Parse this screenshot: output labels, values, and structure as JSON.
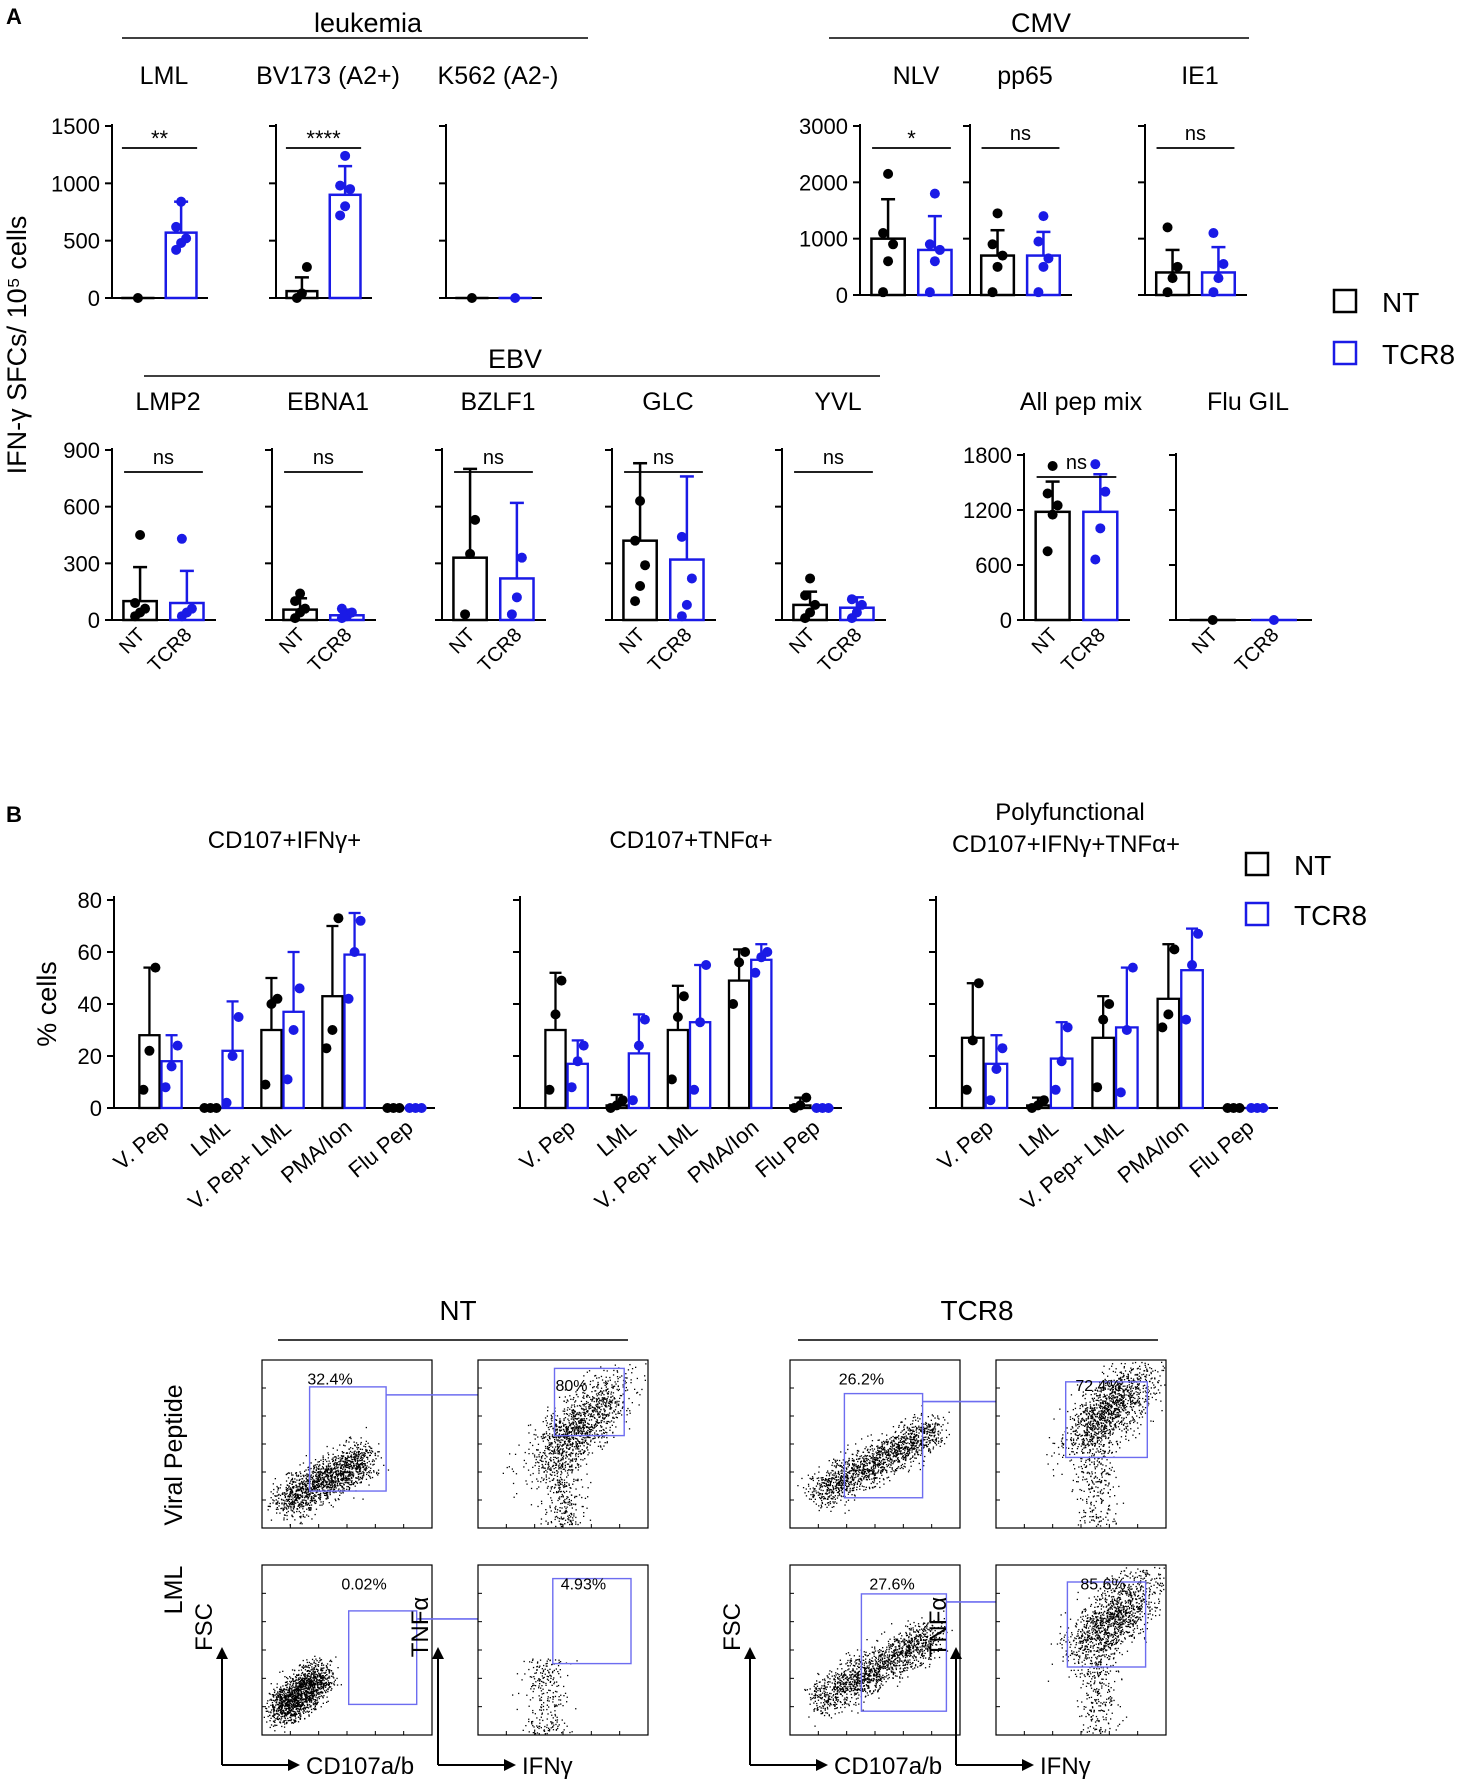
{
  "colors": {
    "nt": "#000000",
    "tcr8": "#1a1ae6",
    "gate": "#6d6df0"
  },
  "figure": {
    "panel_a_label": "A",
    "panel_b_label": "B",
    "legend": {
      "nt": "NT",
      "tcr8": "TCR8"
    },
    "group_a": {
      "x_labels": [
        "NT",
        "TCR8"
      ]
    },
    "group_b": {
      "x_labels": [
        "V. Pep",
        "LML",
        "V. Pep+ LML",
        "PMA/Ion",
        "Flu Pep"
      ]
    },
    "ylabel_a": "IFN-γ SFCs/ 10⁵ cells",
    "ylabel_b": "% cells"
  },
  "chart_data": [
    {
      "type": "bar",
      "group": "leukemia",
      "title": "LML",
      "ylim": [
        0,
        1500
      ],
      "yticks": [
        "0",
        "500",
        "1000",
        "1500"
      ],
      "categories": [
        "NT",
        "TCR8"
      ],
      "values": [
        0,
        570
      ],
      "errors": [
        0,
        270
      ],
      "points": [
        [
          0
        ],
        [
          420,
          480,
          520,
          620,
          840
        ]
      ],
      "sig": "**"
    },
    {
      "type": "bar",
      "group": "leukemia",
      "title": "BV173 (A2+)",
      "ylim": [
        0,
        1500
      ],
      "yticks": [],
      "categories": [
        "NT",
        "TCR8"
      ],
      "values": [
        60,
        900
      ],
      "errors": [
        120,
        250
      ],
      "points": [
        [
          0,
          40,
          270
        ],
        [
          720,
          800,
          950,
          980,
          1240
        ]
      ],
      "sig": "****"
    },
    {
      "type": "bar",
      "group": "leukemia",
      "title": "K562 (A2-)",
      "ylim": [
        0,
        1500
      ],
      "yticks": [],
      "categories": [
        "NT",
        "TCR8"
      ],
      "values": [
        0,
        0
      ],
      "errors": [
        0,
        0
      ],
      "points": [
        [
          0
        ],
        [
          0
        ]
      ],
      "sig": ""
    },
    {
      "type": "bar",
      "group": "CMV",
      "title": "NLV",
      "ylim": [
        0,
        3000
      ],
      "yticks": [
        "0",
        "1000",
        "2000",
        "3000"
      ],
      "categories": [
        "NT",
        "TCR8"
      ],
      "values": [
        1000,
        800
      ],
      "errors": [
        700,
        600
      ],
      "points": [
        [
          50,
          600,
          900,
          1100,
          2150
        ],
        [
          50,
          600,
          800,
          900,
          1800
        ]
      ],
      "sig": "*"
    },
    {
      "type": "bar",
      "group": "CMV",
      "title": "pp65",
      "ylim": [
        0,
        3000
      ],
      "yticks": [],
      "categories": [
        "NT",
        "TCR8"
      ],
      "values": [
        700,
        700
      ],
      "errors": [
        450,
        420
      ],
      "points": [
        [
          50,
          500,
          700,
          900,
          1450
        ],
        [
          50,
          500,
          650,
          950,
          1400
        ]
      ],
      "sig": "ns"
    },
    {
      "type": "bar",
      "group": "CMV",
      "title": "IE1",
      "ylim": [
        0,
        3000
      ],
      "yticks": [],
      "categories": [
        "NT",
        "TCR8"
      ],
      "values": [
        400,
        400
      ],
      "errors": [
        400,
        450
      ],
      "points": [
        [
          50,
          300,
          500,
          1200
        ],
        [
          50,
          300,
          550,
          1100
        ]
      ],
      "sig": "ns"
    },
    {
      "type": "bar",
      "group": "EBV",
      "title": "LMP2",
      "ylim": [
        0,
        900
      ],
      "yticks": [
        "0",
        "300",
        "600",
        "900"
      ],
      "categories": [
        "NT",
        "TCR8"
      ],
      "values": [
        100,
        90
      ],
      "errors": [
        180,
        170
      ],
      "points": [
        [
          20,
          40,
          60,
          90,
          450
        ],
        [
          20,
          40,
          60,
          430
        ]
      ],
      "sig": "ns"
    },
    {
      "type": "bar",
      "group": "EBV",
      "title": "EBNA1",
      "ylim": [
        0,
        900
      ],
      "yticks": [],
      "categories": [
        "NT",
        "TCR8"
      ],
      "values": [
        55,
        25
      ],
      "errors": [
        60,
        30
      ],
      "points": [
        [
          10,
          40,
          60,
          100,
          140
        ],
        [
          10,
          20,
          40,
          60
        ]
      ],
      "sig": "ns"
    },
    {
      "type": "bar",
      "group": "EBV",
      "title": "BZLF1",
      "ylim": [
        0,
        900
      ],
      "yticks": [],
      "categories": [
        "NT",
        "TCR8"
      ],
      "values": [
        330,
        220
      ],
      "errors": [
        470,
        400
      ],
      "points": [
        [
          30,
          350,
          530
        ],
        [
          30,
          120,
          330
        ]
      ],
      "sig": "ns"
    },
    {
      "type": "bar",
      "group": "EBV",
      "title": "GLC",
      "ylim": [
        0,
        900
      ],
      "yticks": [],
      "categories": [
        "NT",
        "TCR8"
      ],
      "values": [
        420,
        320
      ],
      "errors": [
        410,
        440
      ],
      "points": [
        [
          100,
          180,
          290,
          420,
          630
        ],
        [
          20,
          80,
          220,
          440
        ]
      ],
      "sig": "ns"
    },
    {
      "type": "bar",
      "group": "EBV",
      "title": "YVL",
      "ylim": [
        0,
        900
      ],
      "yticks": [],
      "categories": [
        "NT",
        "TCR8"
      ],
      "values": [
        80,
        65
      ],
      "errors": [
        70,
        55
      ],
      "points": [
        [
          10,
          40,
          80,
          130,
          220
        ],
        [
          10,
          40,
          80,
          110
        ]
      ],
      "sig": "ns"
    },
    {
      "type": "bar",
      "group": "",
      "title": "All pep mix",
      "ylim": [
        0,
        1800
      ],
      "yticks": [
        "0",
        "600",
        "1200",
        "1800"
      ],
      "categories": [
        "NT",
        "TCR8"
      ],
      "values": [
        1180,
        1180
      ],
      "errors": [
        330,
        410
      ],
      "points": [
        [
          750,
          1150,
          1250,
          1380,
          1680
        ],
        [
          660,
          1000,
          1400,
          1700
        ]
      ],
      "sig": "ns"
    },
    {
      "type": "bar",
      "group": "",
      "title": "Flu GIL",
      "ylim": [
        0,
        1800
      ],
      "yticks": [],
      "categories": [
        "NT",
        "TCR8"
      ],
      "values": [
        0,
        0
      ],
      "errors": [
        0,
        0
      ],
      "points": [
        [
          0
        ],
        [
          0
        ]
      ],
      "sig": ""
    },
    {
      "type": "bar",
      "title": "CD107+IFNγ+",
      "ylim": [
        0,
        80
      ],
      "yticks": [
        "0",
        "20",
        "40",
        "60",
        "80"
      ],
      "categories": [
        "V. Pep",
        "LML",
        "V. Pep+ LML",
        "PMA/Ion",
        "Flu Pep"
      ],
      "series": [
        {
          "name": "NT",
          "values": [
            28,
            0,
            30,
            43,
            0
          ],
          "errors": [
            26,
            0,
            20,
            27,
            0
          ],
          "points": [
            [
              7,
              22,
              54
            ],
            [
              0,
              0,
              0
            ],
            [
              9,
              40,
              42
            ],
            [
              23,
              30,
              73
            ],
            [
              0,
              0,
              0
            ]
          ]
        },
        {
          "name": "TCR8",
          "values": [
            18,
            22,
            37,
            59,
            0
          ],
          "errors": [
            10,
            19,
            23,
            16,
            0
          ],
          "points": [
            [
              8,
              16,
              24
            ],
            [
              2,
              20,
              35
            ],
            [
              11,
              30,
              46
            ],
            [
              42,
              60,
              72
            ],
            [
              0,
              0,
              0
            ]
          ]
        }
      ]
    },
    {
      "type": "bar",
      "title": "CD107+TNFα+",
      "ylim": [
        0,
        80
      ],
      "yticks": [],
      "categories": [
        "V. Pep",
        "LML",
        "V. Pep+ LML",
        "PMA/Ion",
        "Flu Pep"
      ],
      "series": [
        {
          "name": "NT",
          "values": [
            30,
            1,
            30,
            49,
            1
          ],
          "errors": [
            22,
            4,
            17,
            12,
            3
          ],
          "points": [
            [
              7,
              36,
              49
            ],
            [
              0,
              1,
              3
            ],
            [
              11,
              35,
              43
            ],
            [
              40,
              56,
              60
            ],
            [
              0,
              1,
              4
            ]
          ]
        },
        {
          "name": "TCR8",
          "values": [
            17,
            21,
            33,
            57,
            0
          ],
          "errors": [
            9,
            15,
            22,
            6,
            0
          ],
          "points": [
            [
              8,
              18,
              24
            ],
            [
              3,
              24,
              34
            ],
            [
              7,
              33,
              55
            ],
            [
              52,
              58,
              60
            ],
            [
              0,
              0,
              0
            ]
          ]
        }
      ]
    },
    {
      "type": "bar",
      "title": "Polyfunctional CD107+IFNγ+TNFα+",
      "ylim": [
        0,
        80
      ],
      "yticks": [],
      "categories": [
        "V. Pep",
        "LML",
        "V. Pep+ LML",
        "PMA/Ion",
        "Flu Pep"
      ],
      "series": [
        {
          "name": "NT",
          "values": [
            27,
            1,
            27,
            42,
            0
          ],
          "errors": [
            21,
            3,
            16,
            21,
            0
          ],
          "points": [
            [
              7,
              26,
              48
            ],
            [
              0,
              1,
              3
            ],
            [
              8,
              34,
              40
            ],
            [
              31,
              36,
              61
            ],
            [
              0,
              0,
              0
            ]
          ]
        },
        {
          "name": "TCR8",
          "values": [
            17,
            19,
            31,
            53,
            0
          ],
          "errors": [
            11,
            14,
            23,
            16,
            0
          ],
          "points": [
            [
              3,
              15,
              23
            ],
            [
              7,
              18,
              31
            ],
            [
              6,
              30,
              54
            ],
            [
              34,
              55,
              67
            ],
            [
              0,
              0,
              0
            ]
          ]
        }
      ]
    }
  ],
  "flow": {
    "groups": [
      "NT",
      "TCR8"
    ],
    "row_labels": [
      "Viral Peptide",
      "LML"
    ],
    "axes": {
      "y1": "FSC",
      "x1": "CD107a/b",
      "y2": "TNFα",
      "x2": "IFNγ"
    },
    "gates": [
      [
        "32.4%",
        "80%",
        "0.02%",
        "4.93%"
      ],
      [
        "26.2%",
        "72.4%",
        "27.6%",
        "85.6%"
      ]
    ]
  }
}
